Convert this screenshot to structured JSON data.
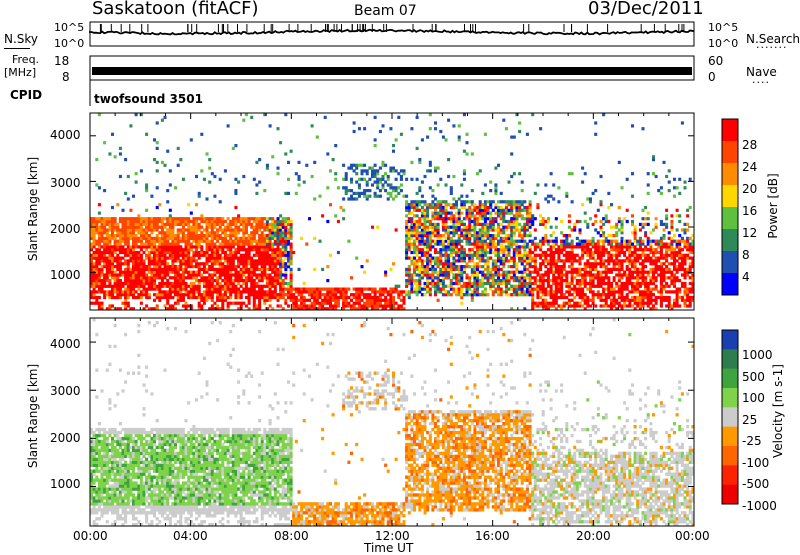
{
  "header": {
    "station": "Saskatoon (fitACF)",
    "beam": "Beam 07",
    "date": "03/Dec/2011"
  },
  "strips": {
    "nsky_label": "N.Sky",
    "nsky_ticks": [
      "10^5",
      "10^0"
    ],
    "nsearch_label": "N.Search",
    "nsearch_ticks": [
      "10^5",
      "10^0"
    ],
    "freq_label": "Freq.",
    "freq_unit": "[MHz]",
    "freq_ticks": [
      "18",
      "8"
    ],
    "nave_label": "Nave",
    "nave_ticks": [
      "60",
      "0"
    ],
    "cpid_label": "CPID",
    "cpid_value": "twofsound 3501"
  },
  "chart_data": [
    {
      "type": "heatmap",
      "panel": "power",
      "ylabel": "Slant Range [km]",
      "yticks": [
        "4000",
        "3000",
        "2000",
        "1000"
      ],
      "ylim": [
        180,
        4500
      ],
      "xlim": [
        0,
        24
      ],
      "colorbar_label": "Power [dB]",
      "colorbar_ticks": [
        "28",
        "24",
        "20",
        "16",
        "12",
        "8",
        "4"
      ],
      "colors": [
        "#0000ff",
        "#1f4fb0",
        "#2e8b57",
        "#5fbf3f",
        "#ffd700",
        "#ff8c00",
        "#ff4500",
        "#ff0000"
      ],
      "regions": [
        {
          "x": [
            0.0,
            8.0
          ],
          "y": [
            500,
            2100
          ],
          "level": "high"
        },
        {
          "x": [
            8.0,
            12.5
          ],
          "y": [
            200,
            700
          ],
          "level": "high"
        },
        {
          "x": [
            12.5,
            17.5
          ],
          "y": [
            600,
            2700
          ],
          "level": "mixed"
        },
        {
          "x": [
            17.5,
            24.0
          ],
          "y": [
            300,
            1600
          ],
          "level": "high"
        },
        {
          "x": [
            0.0,
            24.0
          ],
          "y": [
            2500,
            3600
          ],
          "level": "sparse"
        }
      ]
    },
    {
      "type": "heatmap",
      "panel": "velocity",
      "ylabel": "Slant Range [km]",
      "yticks": [
        "4000",
        "3000",
        "2000",
        "1000"
      ],
      "ylim": [
        180,
        4500
      ],
      "xlim": [
        0,
        24
      ],
      "xlabel": "Time UT",
      "xticks": [
        "00:00",
        "04:00",
        "08:00",
        "12:00",
        "16:00",
        "20:00",
        "00:00"
      ],
      "colorbar_label": "Velocity [m s-1]",
      "colorbar_ticks": [
        "1000",
        "500",
        "100",
        "25",
        "-25",
        "-100",
        "-500",
        "-1000"
      ],
      "colors": [
        "#1a3fb0",
        "#2e7d4f",
        "#3fa33f",
        "#7ed34a",
        "#cccccc",
        "#ff9900",
        "#ff6600",
        "#ff2200",
        "#ee0000"
      ],
      "regions": [
        {
          "x": [
            0.0,
            8.0
          ],
          "y": [
            600,
            2100
          ],
          "level": "positive"
        },
        {
          "x": [
            8.0,
            12.5
          ],
          "y": [
            200,
            700
          ],
          "level": "negative"
        },
        {
          "x": [
            12.5,
            17.5
          ],
          "y": [
            500,
            2700
          ],
          "level": "negative"
        },
        {
          "x": [
            17.5,
            24.0
          ],
          "y": [
            300,
            1800
          ],
          "level": "near-zero"
        }
      ]
    }
  ]
}
